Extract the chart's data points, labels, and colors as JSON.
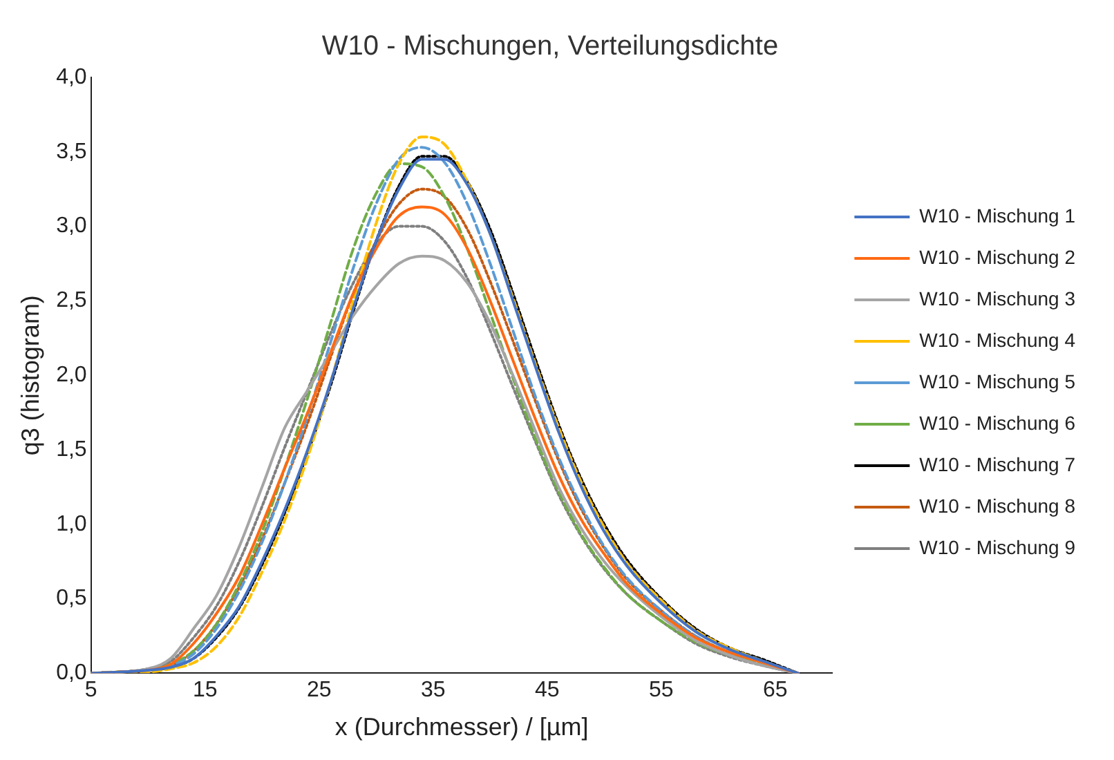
{
  "chart_data": {
    "type": "line",
    "title": "W10 - Mischungen, Verteilungsdichte",
    "xlabel": "x (Durchmesser) / [µm]",
    "ylabel": "q3 (histogram)",
    "x": [
      5,
      8,
      10,
      12,
      14,
      16,
      18,
      20,
      22,
      24,
      26,
      28,
      30,
      32,
      34,
      36,
      38,
      40,
      42,
      44,
      46,
      48,
      50,
      52,
      55,
      58,
      61,
      64,
      67
    ],
    "xlim": [
      5,
      70
    ],
    "xticks": [
      5,
      15,
      25,
      35,
      45,
      55,
      65
    ],
    "ylim": [
      0,
      4
    ],
    "yticks": [
      {
        "value": 0,
        "label": "0,0"
      },
      {
        "value": 0.5,
        "label": "0,5"
      },
      {
        "value": 1,
        "label": "1,0"
      },
      {
        "value": 1.5,
        "label": "1,5"
      },
      {
        "value": 2,
        "label": "2,0"
      },
      {
        "value": 2.5,
        "label": "2,5"
      },
      {
        "value": 3,
        "label": "3,0"
      },
      {
        "value": 3.5,
        "label": "3,5"
      },
      {
        "value": 4,
        "label": "4,0"
      }
    ],
    "grid": false,
    "legend": "right",
    "marker": "none",
    "series": [
      {
        "name": "W10 - Mischung 1",
        "color": "#4472c4",
        "line_style": "solid",
        "values": [
          0,
          0.01,
          0.02,
          0.04,
          0.1,
          0.25,
          0.45,
          0.75,
          1.1,
          1.5,
          1.95,
          2.45,
          2.9,
          3.25,
          3.45,
          3.45,
          3.28,
          2.95,
          2.5,
          2.05,
          1.62,
          1.25,
          0.95,
          0.72,
          0.47,
          0.28,
          0.16,
          0.08,
          0
        ]
      },
      {
        "name": "W10 - Mischung 2",
        "color": "#ff6a13",
        "line_style": "solid",
        "values": [
          0,
          0.01,
          0.02,
          0.06,
          0.2,
          0.4,
          0.65,
          1,
          1.38,
          1.75,
          2.15,
          2.55,
          2.85,
          3.07,
          3.13,
          3.08,
          2.85,
          2.5,
          2.1,
          1.7,
          1.33,
          1.03,
          0.8,
          0.6,
          0.4,
          0.24,
          0.14,
          0.07,
          0
        ]
      },
      {
        "name": "W10 - Mischung 3",
        "color": "#a5a5a5",
        "line_style": "solid",
        "values": [
          0,
          0.01,
          0.03,
          0.1,
          0.3,
          0.52,
          0.85,
          1.25,
          1.65,
          1.9,
          2.15,
          2.4,
          2.6,
          2.75,
          2.8,
          2.77,
          2.62,
          2.35,
          2,
          1.62,
          1.25,
          0.97,
          0.75,
          0.58,
          0.38,
          0.22,
          0.12,
          0.05,
          0
        ]
      },
      {
        "name": "W10 - Mischung 4",
        "color": "#ffc000",
        "line_style": "dashed",
        "values": [
          0,
          0.01,
          0.01,
          0.03,
          0.07,
          0.18,
          0.38,
          0.68,
          1.03,
          1.45,
          1.95,
          2.5,
          3.02,
          3.42,
          3.6,
          3.55,
          3.3,
          2.95,
          2.52,
          2.07,
          1.65,
          1.28,
          0.98,
          0.74,
          0.49,
          0.29,
          0.17,
          0.08,
          0
        ]
      },
      {
        "name": "W10 - Mischung 5",
        "color": "#5b9bd5",
        "line_style": "dashed",
        "values": [
          0,
          0.01,
          0.02,
          0.05,
          0.13,
          0.3,
          0.55,
          0.88,
          1.28,
          1.73,
          2.22,
          2.72,
          3.15,
          3.45,
          3.53,
          3.43,
          3.15,
          2.75,
          2.3,
          1.85,
          1.45,
          1.12,
          0.85,
          0.64,
          0.42,
          0.25,
          0.14,
          0.07,
          0
        ]
      },
      {
        "name": "W10 - Mischung 6",
        "color": "#70ad47",
        "line_style": "dashed",
        "values": [
          0,
          0.01,
          0.02,
          0.06,
          0.15,
          0.33,
          0.6,
          0.95,
          1.38,
          1.85,
          2.35,
          2.85,
          3.22,
          3.42,
          3.4,
          3.2,
          2.85,
          2.42,
          1.98,
          1.57,
          1.22,
          0.93,
          0.71,
          0.53,
          0.35,
          0.21,
          0.12,
          0.06,
          0
        ]
      },
      {
        "name": "W10 - Mischung 7",
        "color": "#000000",
        "line_style": "dotted",
        "values": [
          0,
          0.01,
          0.02,
          0.04,
          0.1,
          0.24,
          0.44,
          0.73,
          1.08,
          1.48,
          1.93,
          2.43,
          2.9,
          3.27,
          3.47,
          3.47,
          3.3,
          2.98,
          2.55,
          2.1,
          1.67,
          1.3,
          1,
          0.76,
          0.5,
          0.3,
          0.17,
          0.09,
          0
        ]
      },
      {
        "name": "W10 - Mischung 8",
        "color": "#c55a11",
        "line_style": "dotted",
        "values": [
          0,
          0.01,
          0.02,
          0.05,
          0.15,
          0.33,
          0.58,
          0.9,
          1.28,
          1.68,
          2.12,
          2.55,
          2.9,
          3.15,
          3.25,
          3.2,
          2.98,
          2.63,
          2.23,
          1.82,
          1.43,
          1.1,
          0.84,
          0.63,
          0.42,
          0.25,
          0.14,
          0.07,
          0
        ]
      },
      {
        "name": "W10 - Mischung 9",
        "color": "#7f7f7f",
        "line_style": "dotted",
        "values": [
          0,
          0.01,
          0.03,
          0.08,
          0.24,
          0.45,
          0.75,
          1.12,
          1.52,
          1.9,
          2.28,
          2.62,
          2.88,
          3,
          3,
          2.9,
          2.65,
          2.3,
          1.92,
          1.55,
          1.2,
          0.92,
          0.7,
          0.53,
          0.35,
          0.2,
          0.11,
          0.05,
          0
        ]
      }
    ]
  }
}
